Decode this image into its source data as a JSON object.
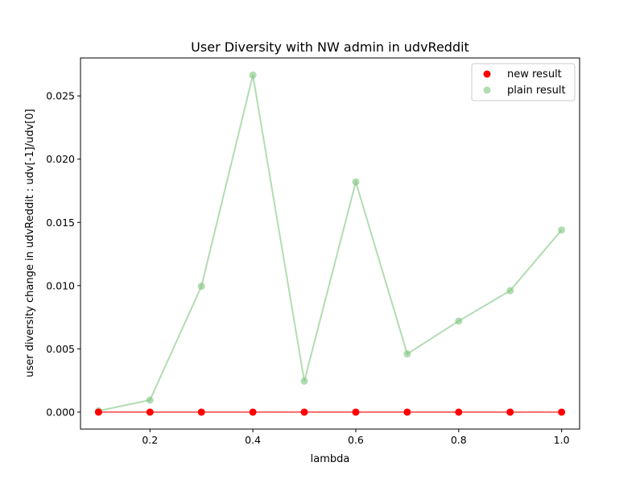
{
  "chart_data": {
    "type": "line",
    "title": "User Diversity with NW admin in udvReddit",
    "xlabel": "lambda",
    "ylabel": "user diversity change in udvReddit : udv[-1]/udv[0]",
    "xlim": [
      0.065,
      1.035
    ],
    "ylim": [
      -0.00134,
      0.028
    ],
    "x_ticks": [
      "0.2",
      "0.4",
      "0.6",
      "0.8",
      "1.0"
    ],
    "x_tick_values": [
      0.2,
      0.4,
      0.6,
      0.8,
      1.0
    ],
    "y_ticks": [
      "0.000",
      "0.005",
      "0.010",
      "0.015",
      "0.020",
      "0.025"
    ],
    "y_tick_values": [
      0.0,
      0.005,
      0.01,
      0.015,
      0.02,
      0.025
    ],
    "grid": false,
    "legend_position": "top-right",
    "x": [
      0.1,
      0.2,
      0.3,
      0.4,
      0.5,
      0.6,
      0.7,
      0.8,
      0.9,
      1.0
    ],
    "series": [
      {
        "name": "new result",
        "color": "#ff0000",
        "values": [
          0,
          0,
          0,
          0,
          0,
          0,
          0,
          0,
          0,
          0
        ]
      },
      {
        "name": "plain result",
        "color": "#7fc47f",
        "values": [
          0.0001,
          0.00095,
          0.00995,
          0.02665,
          0.00245,
          0.0182,
          0.0046,
          0.0072,
          0.0096,
          0.0144
        ]
      }
    ]
  }
}
